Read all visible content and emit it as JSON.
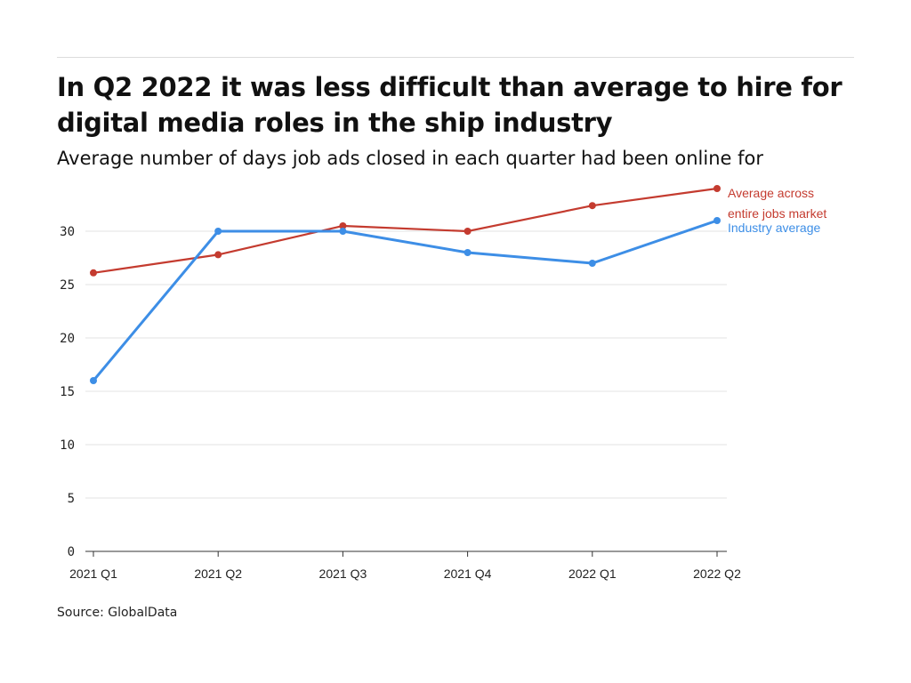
{
  "header": {
    "title": "In Q2 2022 it was less difficult than average to hire for digital media roles in the ship industry",
    "subtitle": "Average number of days job ads closed in each quarter had been online for"
  },
  "footer": {
    "source": "Source: GlobalData"
  },
  "chart_data": {
    "type": "line",
    "title": "In Q2 2022 it was less difficult than average to hire for digital media roles in the ship industry",
    "subtitle": "Average number of days job ads closed in each quarter had been online for",
    "xlabel": "",
    "ylabel": "",
    "categories": [
      "2021 Q1",
      "2021 Q2",
      "2021 Q3",
      "2021 Q4",
      "2022 Q1",
      "2022 Q2"
    ],
    "y_ticks": [
      0,
      5,
      10,
      15,
      20,
      25,
      30
    ],
    "ylim": [
      0,
      34
    ],
    "grid": "horizontal",
    "legend": "direct labels at right end of lines",
    "series": [
      {
        "name": "Average across entire jobs market",
        "label_lines": [
          "Average across",
          "entire jobs market"
        ],
        "color": "#c43b2f",
        "values": [
          26.1,
          27.8,
          30.5,
          30.0,
          32.4,
          34.0
        ]
      },
      {
        "name": "Industry average",
        "label_lines": [
          "Industry average"
        ],
        "color": "#3d8ee6",
        "values": [
          16.0,
          30.0,
          30.0,
          28.0,
          27.0,
          31.0
        ]
      }
    ]
  }
}
